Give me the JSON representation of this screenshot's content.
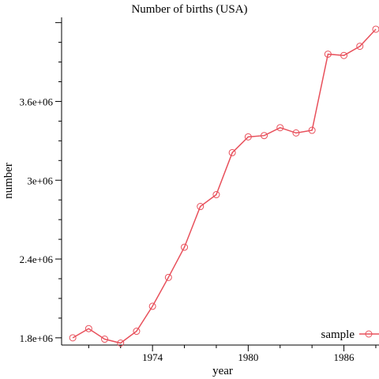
{
  "chart_data": {
    "type": "line",
    "title": "Number of births (USA)",
    "xlabel": "year",
    "ylabel": "number",
    "x": [
      1969,
      1970,
      1971,
      1972,
      1973,
      1974,
      1975,
      1976,
      1977,
      1978,
      1979,
      1980,
      1981,
      1982,
      1983,
      1984,
      1985,
      1986,
      1987,
      1988
    ],
    "series": [
      {
        "name": "sample",
        "color": "#e8505b",
        "values": [
          1800000,
          1870000,
          1790000,
          1760000,
          1850000,
          2040000,
          2260000,
          2490000,
          2800000,
          2890000,
          3210000,
          3330000,
          3340000,
          3400000,
          3360000,
          3380000,
          3960000,
          3950000,
          4020000,
          4150000
        ]
      }
    ],
    "xlim": [
      1968.3,
      1988.2
    ],
    "ylim": [
      1745000,
      4240000
    ],
    "xticks": [
      1974,
      1980,
      1986
    ],
    "xtick_labels": [
      "1974",
      "1980",
      "1986"
    ],
    "yticks": [
      1800000,
      2400000,
      3000000,
      3600000
    ],
    "ytick_labels": [
      "1.8e+06",
      "2.4e+06",
      "3e+06",
      "3.6e+06"
    ],
    "grid": false,
    "legend_position": "bottom-right"
  }
}
